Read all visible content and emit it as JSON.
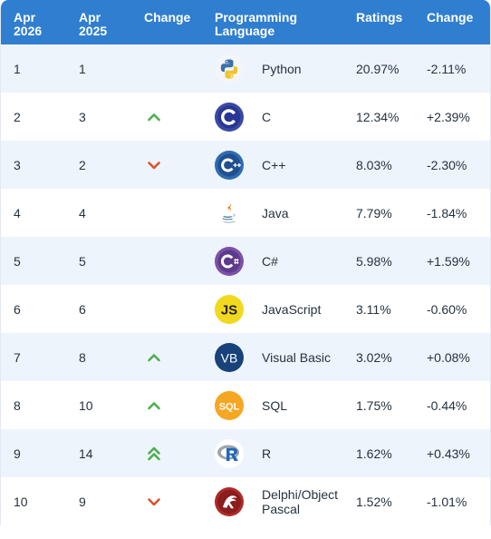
{
  "headers": {
    "col1": "Apr 2026",
    "col2": "Apr 2025",
    "col3": "Change",
    "col4": "Programming Language",
    "col5": "Ratings",
    "col6": "Change"
  },
  "rows": [
    {
      "now": "1",
      "prev": "1",
      "trend": "none",
      "lang": "Python",
      "logo": "python-icon",
      "rating": "20.97%",
      "change": "-2.11%"
    },
    {
      "now": "2",
      "prev": "3",
      "trend": "up",
      "lang": "C",
      "logo": "c-icon",
      "rating": "12.34%",
      "change": "+2.39%"
    },
    {
      "now": "3",
      "prev": "2",
      "trend": "down",
      "lang": "C++",
      "logo": "cpp-icon",
      "rating": "8.03%",
      "change": "-2.30%"
    },
    {
      "now": "4",
      "prev": "4",
      "trend": "none",
      "lang": "Java",
      "logo": "java-icon",
      "rating": "7.79%",
      "change": "-1.84%"
    },
    {
      "now": "5",
      "prev": "5",
      "trend": "none",
      "lang": "C#",
      "logo": "csharp-icon",
      "rating": "5.98%",
      "change": "+1.59%"
    },
    {
      "now": "6",
      "prev": "6",
      "trend": "none",
      "lang": "JavaScript",
      "logo": "javascript-icon",
      "rating": "3.11%",
      "change": "-0.60%"
    },
    {
      "now": "7",
      "prev": "8",
      "trend": "up",
      "lang": "Visual Basic",
      "logo": "visual-basic-icon",
      "rating": "3.02%",
      "change": "+0.08%"
    },
    {
      "now": "8",
      "prev": "10",
      "trend": "up",
      "lang": "SQL",
      "logo": "sql-icon",
      "rating": "1.75%",
      "change": "-0.44%"
    },
    {
      "now": "9",
      "prev": "14",
      "trend": "up2",
      "lang": "R",
      "logo": "r-icon",
      "rating": "1.62%",
      "change": "+0.43%"
    },
    {
      "now": "10",
      "prev": "9",
      "trend": "down",
      "lang": "Delphi/Object Pascal",
      "logo": "delphi-icon",
      "rating": "1.52%",
      "change": "-1.01%"
    }
  ],
  "colors": {
    "header_bg": "#2f7ed0",
    "row_alt": "#eef4fb",
    "up": "#4caf50",
    "down": "#d9532c"
  }
}
